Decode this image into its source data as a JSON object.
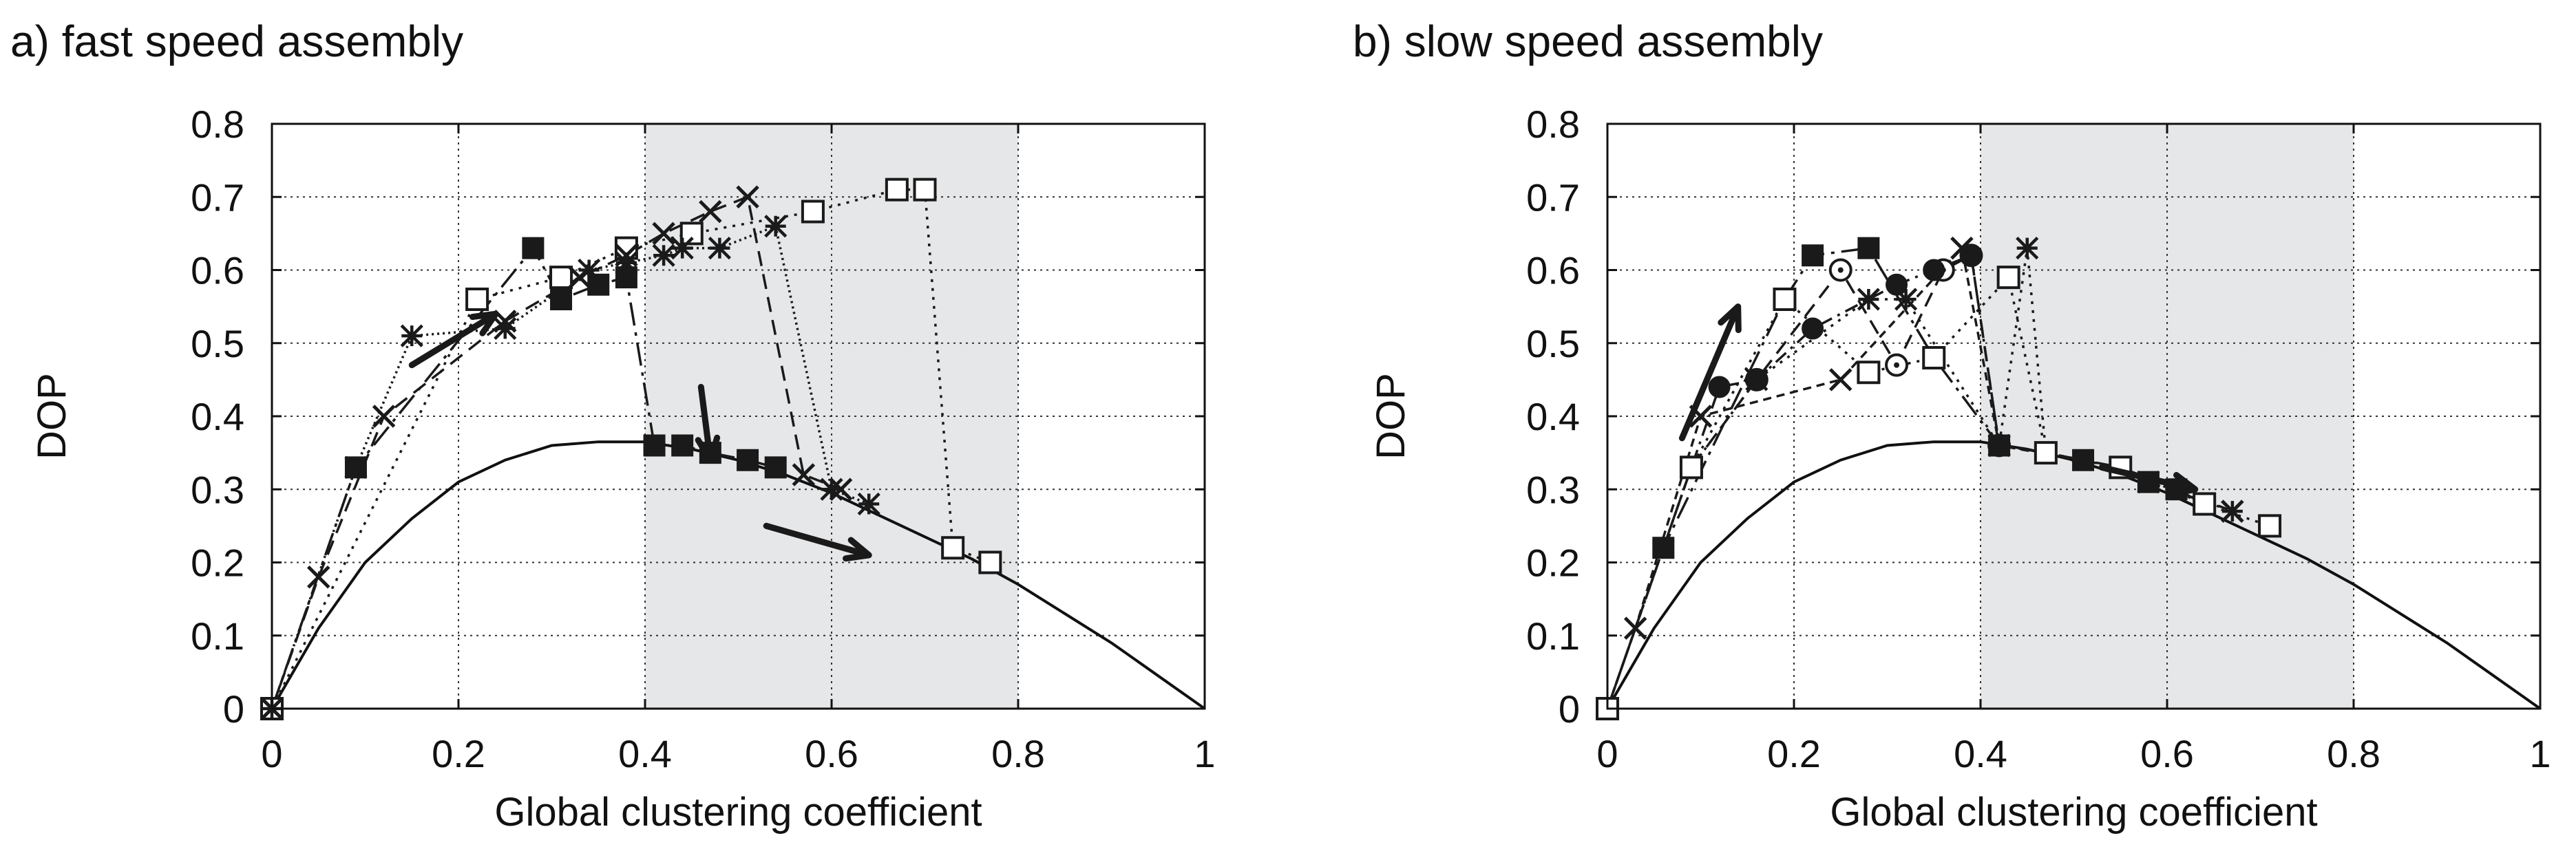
{
  "chart_data": [
    {
      "type": "line",
      "title": "a) fast speed assembly",
      "xlabel": "Global clustering coefficient",
      "ylabel": "DOP",
      "xlim": [
        0,
        1
      ],
      "ylim": [
        0,
        0.8
      ],
      "xticks": [
        0,
        0.2,
        0.4,
        0.6,
        0.8,
        1
      ],
      "xtick_labels": [
        "0",
        "0.2",
        "0.4",
        "0.6",
        "0.8",
        "1"
      ],
      "yticks": [
        0,
        0.1,
        0.2,
        0.3,
        0.4,
        0.5,
        0.6,
        0.7,
        0.8
      ],
      "ytick_labels": [
        "0",
        "0.1",
        "0.2",
        "0.3",
        "0.4",
        "0.5",
        "0.6",
        "0.7",
        "0.8"
      ],
      "grid": true,
      "shaded_region": [
        0.4,
        0.8
      ],
      "shade_color": "#e6e7e9",
      "reference_curve": [
        [
          0,
          0
        ],
        [
          0.05,
          0.11
        ],
        [
          0.1,
          0.2
        ],
        [
          0.15,
          0.26
        ],
        [
          0.2,
          0.31
        ],
        [
          0.25,
          0.34
        ],
        [
          0.3,
          0.36
        ],
        [
          0.35,
          0.365
        ],
        [
          0.4,
          0.365
        ],
        [
          0.45,
          0.355
        ],
        [
          0.5,
          0.34
        ],
        [
          0.55,
          0.32
        ],
        [
          0.6,
          0.295
        ],
        [
          0.65,
          0.265
        ],
        [
          0.7,
          0.235
        ],
        [
          0.75,
          0.205
        ],
        [
          0.8,
          0.17
        ],
        [
          0.85,
          0.13
        ],
        [
          0.9,
          0.09
        ],
        [
          0.95,
          0.045
        ],
        [
          1,
          0
        ]
      ],
      "series": [
        {
          "marker": "filled-square",
          "dash": "long-dash-dot",
          "x": [
            0,
            0.09,
            0.28,
            0.31,
            0.35,
            0.38,
            0.41,
            0.44,
            0.47,
            0.51,
            0.54
          ],
          "y": [
            0,
            0.33,
            0.63,
            0.56,
            0.58,
            0.59,
            0.36,
            0.36,
            0.35,
            0.34,
            0.33
          ]
        },
        {
          "marker": "open-square",
          "dash": "dotted",
          "x": [
            0,
            0.22,
            0.31,
            0.38,
            0.45,
            0.58,
            0.67,
            0.7,
            0.73,
            0.77
          ],
          "y": [
            0,
            0.56,
            0.59,
            0.63,
            0.65,
            0.68,
            0.71,
            0.71,
            0.22,
            0.2
          ]
        },
        {
          "marker": "cross",
          "dash": "dashed",
          "x": [
            0,
            0.05,
            0.12,
            0.25,
            0.33,
            0.38,
            0.42,
            0.47,
            0.51,
            0.57,
            0.61
          ],
          "y": [
            0,
            0.18,
            0.4,
            0.53,
            0.59,
            0.62,
            0.65,
            0.68,
            0.7,
            0.32,
            0.3
          ]
        },
        {
          "marker": "asterisk",
          "dash": "dense-dot",
          "x": [
            0,
            0.09,
            0.15,
            0.25,
            0.34,
            0.38,
            0.42,
            0.44,
            0.48,
            0.54,
            0.6,
            0.64
          ],
          "y": [
            0,
            0.33,
            0.51,
            0.52,
            0.6,
            0.61,
            0.62,
            0.63,
            0.63,
            0.66,
            0.3,
            0.28
          ]
        }
      ],
      "arrows": [
        {
          "from": [
            0.15,
            0.47
          ],
          "to": [
            0.24,
            0.54
          ]
        },
        {
          "from": [
            0.46,
            0.44
          ],
          "to": [
            0.47,
            0.34
          ]
        },
        {
          "from": [
            0.53,
            0.25
          ],
          "to": [
            0.64,
            0.21
          ]
        }
      ]
    },
    {
      "type": "line",
      "title": "b) slow speed assembly",
      "xlabel": "Global clustering coefficient",
      "ylabel": "DOP",
      "xlim": [
        0,
        1
      ],
      "ylim": [
        0,
        0.8
      ],
      "xticks": [
        0,
        0.2,
        0.4,
        0.6,
        0.8,
        1
      ],
      "xtick_labels": [
        "0",
        "0.2",
        "0.4",
        "0.6",
        "0.8",
        "1"
      ],
      "yticks": [
        0,
        0.1,
        0.2,
        0.3,
        0.4,
        0.5,
        0.6,
        0.7,
        0.8
      ],
      "ytick_labels": [
        "0",
        "0.1",
        "0.2",
        "0.3",
        "0.4",
        "0.5",
        "0.6",
        "0.7",
        "0.8"
      ],
      "grid": true,
      "shaded_region": [
        0.4,
        0.8
      ],
      "shade_color": "#e6e7e9",
      "reference_curve": [
        [
          0,
          0
        ],
        [
          0.05,
          0.11
        ],
        [
          0.1,
          0.2
        ],
        [
          0.15,
          0.26
        ],
        [
          0.2,
          0.31
        ],
        [
          0.25,
          0.34
        ],
        [
          0.3,
          0.36
        ],
        [
          0.35,
          0.365
        ],
        [
          0.4,
          0.365
        ],
        [
          0.45,
          0.355
        ],
        [
          0.5,
          0.34
        ],
        [
          0.55,
          0.32
        ],
        [
          0.6,
          0.295
        ],
        [
          0.65,
          0.265
        ],
        [
          0.7,
          0.235
        ],
        [
          0.75,
          0.205
        ],
        [
          0.8,
          0.17
        ],
        [
          0.85,
          0.13
        ],
        [
          0.9,
          0.09
        ],
        [
          0.95,
          0.045
        ],
        [
          1,
          0
        ]
      ],
      "series": [
        {
          "marker": "filled-square",
          "dash": "long-dash-dot",
          "x": [
            0,
            0.06,
            0.19,
            0.22,
            0.28,
            0.35,
            0.42,
            0.47,
            0.51,
            0.55,
            0.58,
            0.61,
            0.64
          ],
          "y": [
            0,
            0.22,
            0.56,
            0.62,
            0.63,
            0.48,
            0.36,
            0.35,
            0.34,
            0.33,
            0.31,
            0.3,
            0.28
          ]
        },
        {
          "marker": "open-circle",
          "dash": "dashed",
          "x": [
            0,
            0.09,
            0.16,
            0.25,
            0.31,
            0.36,
            0.39,
            0.42
          ],
          "y": [
            0,
            0.33,
            0.45,
            0.6,
            0.47,
            0.6,
            0.62,
            0.36
          ]
        },
        {
          "marker": "filled-circle",
          "dash": "dash-dot",
          "x": [
            0,
            0.09,
            0.12,
            0.16,
            0.22,
            0.31,
            0.35,
            0.39,
            0.42
          ],
          "y": [
            0,
            0.33,
            0.44,
            0.45,
            0.52,
            0.58,
            0.6,
            0.62,
            0.36
          ]
        },
        {
          "marker": "cross",
          "dash": "short-dash",
          "x": [
            0,
            0.03,
            0.1,
            0.25,
            0.38,
            0.42,
            0.55,
            0.67
          ],
          "y": [
            0,
            0.11,
            0.4,
            0.45,
            0.63,
            0.36,
            0.33,
            0.27
          ]
        },
        {
          "marker": "asterisk",
          "dash": "dotted",
          "x": [
            0,
            0.09,
            0.16,
            0.28,
            0.32,
            0.42,
            0.45,
            0.47,
            0.58,
            0.67
          ],
          "y": [
            0,
            0.33,
            0.45,
            0.56,
            0.56,
            0.36,
            0.63,
            0.35,
            0.31,
            0.27
          ]
        },
        {
          "marker": "open-square",
          "dash": "dotted",
          "x": [
            0,
            0.09,
            0.19,
            0.28,
            0.35,
            0.43,
            0.47,
            0.55,
            0.64,
            0.71
          ],
          "y": [
            0,
            0.33,
            0.56,
            0.46,
            0.48,
            0.59,
            0.35,
            0.33,
            0.28,
            0.25
          ]
        }
      ],
      "arrows": [
        {
          "from": [
            0.08,
            0.37
          ],
          "to": [
            0.14,
            0.55
          ]
        },
        {
          "from": [
            0.53,
            0.33
          ],
          "to": [
            0.63,
            0.3
          ]
        },
        {
          "from": [
            0.53,
            0.33
          ],
          "to": [
            0.63,
            0.3
          ]
        }
      ]
    }
  ]
}
